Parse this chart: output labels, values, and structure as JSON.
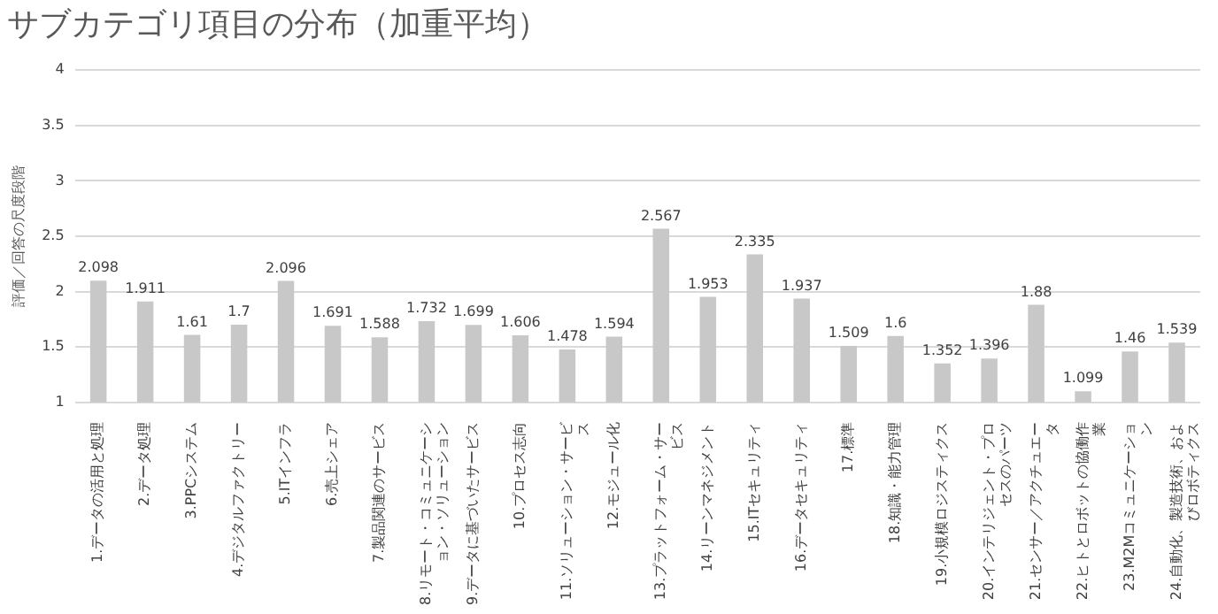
{
  "chart_data": {
    "type": "bar",
    "title": "サブカテゴリ項目の分布（加重平均）",
    "ylabel": "評価／回答の尺度段階",
    "categories": [
      "1.データの活用と処理",
      "2.データ処理",
      "3.PPCシステム",
      "4.デジタルファクトリー",
      "5.ITインフラ",
      "6.売上シェア",
      "7.製品関連のサービス",
      "8.リモート・コミュニケーション・ソリューション",
      "9.データに基づいたサービス",
      "10.プロセス志向",
      "11.ソリューション・サービス",
      "12.モジュール化",
      "13.プラットフォーム・サービス",
      "14.リーンマネジメント",
      "15.ITセキュリティ",
      "16.データセキュリティ",
      "17.標準",
      "18.知識・能力管理",
      "19.小規模ロジスティクス",
      "20.インテリジェント・プロセスのパーツ",
      "21.センサー／アクチュエータ",
      "22.ヒトとロボットの協働作業",
      "23.M2Mコミュニケーション",
      "24.自動化、製造技術、およびロボティクス"
    ],
    "values": [
      2.098,
      1.911,
      1.61,
      1.7,
      2.096,
      1.691,
      1.588,
      1.732,
      1.699,
      1.606,
      1.478,
      1.594,
      2.567,
      1.953,
      2.335,
      1.937,
      1.509,
      1.6,
      1.352,
      1.396,
      1.88,
      1.099,
      1.46,
      1.539
    ],
    "color": "#c8c8c8",
    "ylim": [
      1,
      4
    ],
    "yticks": [
      1,
      1.5,
      2,
      2.5,
      3,
      3.5,
      4
    ],
    "grid": "y",
    "legend": false,
    "data_labels": true
  }
}
